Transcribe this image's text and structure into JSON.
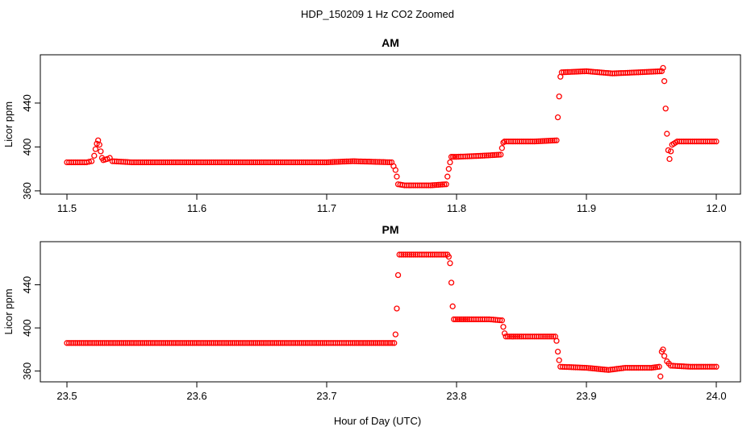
{
  "figure": {
    "title": "HDP_150209  1 Hz CO2 Zoomed",
    "xlabel": "Hour of Day (UTC)"
  },
  "colors": {
    "points": "#ff0000",
    "axes": "#000000",
    "background": "#ffffff"
  },
  "chart_data": [
    {
      "type": "scatter",
      "title": "AM",
      "xlabel": "",
      "ylabel": "Licor ppm",
      "xlim": [
        11.5,
        12.0
      ],
      "ylim": [
        357,
        484
      ],
      "x_ticks": [
        11.5,
        11.6,
        11.7,
        11.8,
        11.9,
        12.0
      ],
      "x_tick_labels": [
        "11.5",
        "11.6",
        "11.7",
        "11.8",
        "11.9",
        "12.0"
      ],
      "y_ticks": [
        360,
        400,
        440
      ],
      "y_tick_labels": [
        "360",
        "400",
        "440"
      ],
      "grid": false,
      "marker": "open-circle",
      "series": [
        {
          "points": [
            [
              11.5,
              386
            ],
            [
              11.51,
              386
            ],
            [
              11.515,
              386
            ],
            [
              11.519,
              387
            ],
            [
              11.521,
              392
            ],
            [
              11.522,
              398
            ],
            [
              11.523,
              403
            ],
            [
              11.524,
              406
            ],
            [
              11.525,
              402
            ],
            [
              11.526,
              396
            ],
            [
              11.527,
              390
            ],
            [
              11.528,
              388
            ],
            [
              11.531,
              389
            ],
            [
              11.533,
              390
            ],
            [
              11.535,
              387
            ],
            [
              11.55,
              386
            ],
            [
              11.6,
              386
            ],
            [
              11.65,
              386
            ],
            [
              11.7,
              386
            ],
            [
              11.72,
              387
            ],
            [
              11.75,
              386
            ],
            [
              11.753,
              379
            ],
            [
              11.754,
              373
            ],
            [
              11.755,
              366
            ],
            [
              11.76,
              365
            ],
            [
              11.78,
              365
            ],
            [
              11.792,
              366
            ],
            [
              11.793,
              373
            ],
            [
              11.794,
              380
            ],
            [
              11.795,
              386
            ],
            [
              11.796,
              391
            ],
            [
              11.8,
              391
            ],
            [
              11.82,
              392
            ],
            [
              11.834,
              393
            ],
            [
              11.835,
              399
            ],
            [
              11.836,
              404
            ],
            [
              11.837,
              405
            ],
            [
              11.86,
              405
            ],
            [
              11.877,
              406
            ],
            [
              11.878,
              427
            ],
            [
              11.879,
              446
            ],
            [
              11.88,
              464
            ],
            [
              11.881,
              468
            ],
            [
              11.9,
              469
            ],
            [
              11.92,
              467
            ],
            [
              11.94,
              468
            ],
            [
              11.958,
              469
            ],
            [
              11.959,
              472
            ],
            [
              11.96,
              460
            ],
            [
              11.961,
              435
            ],
            [
              11.962,
              412
            ],
            [
              11.963,
              397
            ],
            [
              11.964,
              389
            ],
            [
              11.965,
              396
            ],
            [
              11.966,
              402
            ],
            [
              11.97,
              405
            ],
            [
              11.98,
              405
            ],
            [
              12.0,
              405
            ]
          ]
        }
      ]
    },
    {
      "type": "scatter",
      "title": "PM",
      "xlabel": "Hour of Day (UTC)",
      "ylabel": "Licor ppm",
      "xlim": [
        23.5,
        24.0
      ],
      "ylim": [
        350,
        480
      ],
      "x_ticks": [
        23.5,
        23.6,
        23.7,
        23.8,
        23.9,
        24.0
      ],
      "x_tick_labels": [
        "23.5",
        "23.6",
        "23.7",
        "23.8",
        "23.9",
        "24.0"
      ],
      "y_ticks": [
        360,
        400,
        440
      ],
      "y_tick_labels": [
        "360",
        "400",
        "440"
      ],
      "grid": false,
      "marker": "open-circle",
      "series": [
        {
          "points": [
            [
              23.5,
              386
            ],
            [
              23.55,
              386
            ],
            [
              23.6,
              386
            ],
            [
              23.65,
              386
            ],
            [
              23.7,
              386
            ],
            [
              23.72,
              386
            ],
            [
              23.752,
              386
            ],
            [
              23.753,
              394
            ],
            [
              23.754,
              418
            ],
            [
              23.755,
              449
            ],
            [
              23.756,
              468
            ],
            [
              23.77,
              468
            ],
            [
              23.78,
              468
            ],
            [
              23.793,
              468
            ],
            [
              23.794,
              466
            ],
            [
              23.795,
              460
            ],
            [
              23.796,
              442
            ],
            [
              23.797,
              420
            ],
            [
              23.798,
              408
            ],
            [
              23.81,
              408
            ],
            [
              23.825,
              408
            ],
            [
              23.835,
              407
            ],
            [
              23.836,
              401
            ],
            [
              23.837,
              395
            ],
            [
              23.838,
              392
            ],
            [
              23.85,
              392
            ],
            [
              23.865,
              392
            ],
            [
              23.876,
              392
            ],
            [
              23.877,
              388
            ],
            [
              23.878,
              378
            ],
            [
              23.879,
              370
            ],
            [
              23.88,
              364
            ],
            [
              23.9,
              363
            ],
            [
              23.917,
              361
            ],
            [
              23.93,
              363
            ],
            [
              23.95,
              363
            ],
            [
              23.956,
              364
            ],
            [
              23.957,
              355
            ],
            [
              23.958,
              378
            ],
            [
              23.959,
              380
            ],
            [
              23.96,
              374
            ],
            [
              23.962,
              369
            ],
            [
              23.965,
              365
            ],
            [
              23.98,
              364
            ],
            [
              24.0,
              364
            ]
          ]
        }
      ]
    }
  ]
}
